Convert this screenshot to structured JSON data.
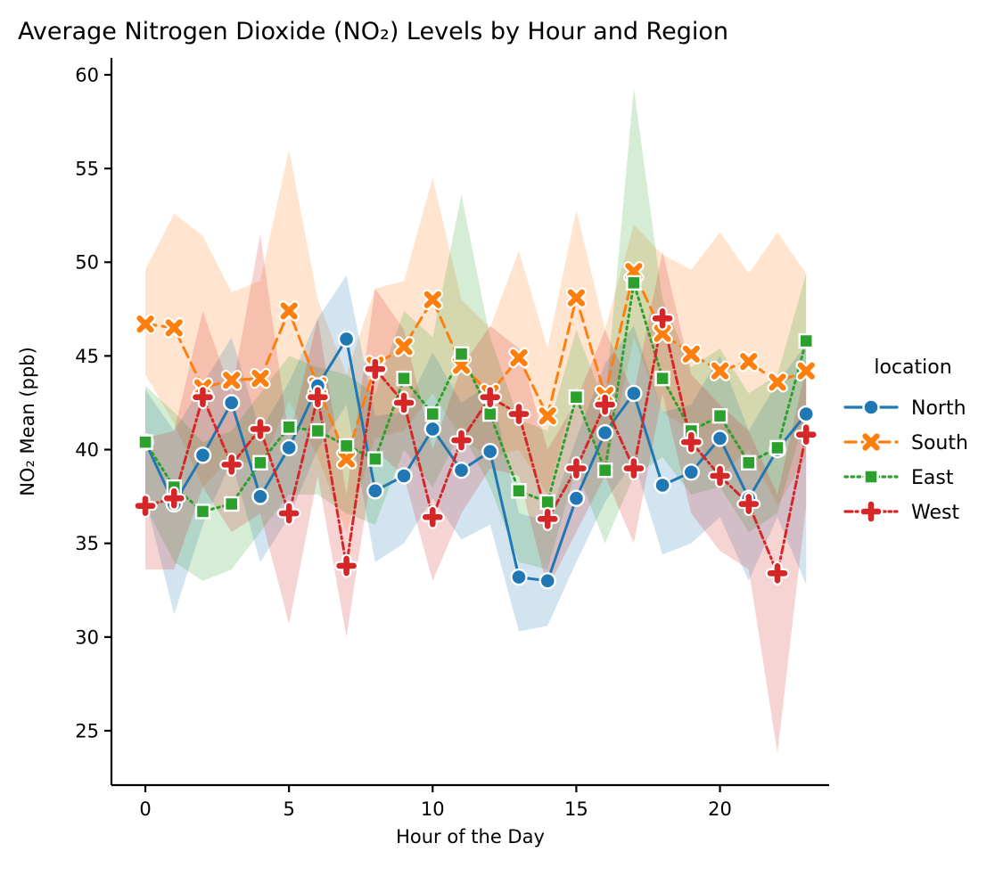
{
  "chart_data": {
    "type": "line",
    "title": "Average Nitrogen Dioxide (NO₂) Levels by Hour and Region",
    "xlabel": "Hour of the Day",
    "ylabel": "NO₂ Mean (ppb)",
    "legend_title": "location",
    "x": [
      0,
      1,
      2,
      3,
      4,
      5,
      6,
      7,
      8,
      9,
      10,
      11,
      12,
      13,
      14,
      15,
      16,
      17,
      18,
      19,
      20,
      21,
      22,
      23
    ],
    "x_ticks": [
      0,
      5,
      10,
      15,
      20
    ],
    "y_ticks": [
      25,
      30,
      35,
      40,
      45,
      50,
      55,
      60
    ],
    "xlim": [
      -1.18,
      23.8
    ],
    "ylim": [
      22.1,
      60.9
    ],
    "grid": false,
    "legend_position": "center right, outside plot",
    "band_note": "shaded areas are approximate confidence intervals read from the image",
    "series": [
      {
        "name": "South",
        "color": "#ff7f0e",
        "marker": "X",
        "dash": "12,7",
        "values": [
          46.7,
          46.5,
          43.3,
          43.7,
          43.8,
          47.4,
          43.4,
          39.5,
          44.5,
          45.5,
          48.0,
          44.5,
          43.0,
          44.9,
          41.8,
          48.1,
          42.9,
          49.5,
          46.2,
          45.1,
          44.2,
          44.7,
          43.6,
          44.2
        ],
        "band_upper": [
          49.6,
          52.6,
          51.4,
          48.4,
          49.0,
          56.0,
          48.0,
          44.0,
          48.6,
          49.0,
          54.5,
          48.0,
          46.5,
          50.6,
          45.4,
          52.8,
          46.4,
          52.0,
          50.4,
          49.6,
          51.6,
          49.4,
          51.6,
          49.4
        ],
        "band_lower": [
          44.0,
          41.4,
          38.0,
          39.6,
          39.0,
          42.6,
          39.6,
          35.6,
          40.6,
          41.0,
          43.0,
          40.6,
          39.6,
          40.0,
          37.6,
          43.4,
          38.6,
          46.0,
          42.0,
          41.0,
          38.6,
          40.0,
          37.0,
          39.6
        ]
      },
      {
        "name": "North",
        "color": "#1f77b4",
        "marker": "circle",
        "dash": "",
        "values": [
          40.4,
          37.1,
          39.7,
          42.5,
          37.5,
          40.1,
          43.4,
          45.9,
          37.8,
          38.6,
          41.1,
          38.9,
          39.9,
          33.2,
          33.0,
          37.4,
          40.9,
          43.0,
          38.1,
          38.8,
          40.6,
          37.4,
          40.0,
          41.9
        ],
        "band_upper": [
          43.2,
          41.0,
          43.5,
          46.0,
          41.0,
          43.6,
          47.0,
          49.3,
          41.8,
          42.0,
          45.2,
          42.5,
          43.5,
          36.6,
          36.2,
          40.6,
          44.6,
          46.6,
          42.0,
          42.4,
          45.0,
          41.0,
          43.6,
          45.6
        ],
        "band_lower": [
          37.4,
          31.2,
          36.0,
          39.4,
          34.0,
          36.4,
          40.0,
          42.4,
          34.0,
          35.0,
          37.4,
          35.2,
          36.0,
          30.3,
          30.6,
          34.0,
          37.2,
          39.4,
          34.4,
          35.0,
          36.4,
          33.0,
          36.4,
          32.8
        ]
      },
      {
        "name": "East",
        "color": "#2ca02c",
        "marker": "square",
        "dash": "2.5,4.5",
        "values": [
          40.4,
          38.0,
          36.7,
          37.1,
          39.3,
          41.2,
          41.0,
          40.2,
          39.5,
          43.8,
          41.9,
          45.1,
          41.9,
          37.8,
          37.2,
          42.8,
          38.9,
          48.9,
          43.8,
          41.0,
          41.8,
          39.3,
          40.1,
          45.8
        ],
        "band_upper": [
          43.4,
          42.0,
          40.4,
          41.0,
          43.0,
          45.0,
          44.4,
          44.0,
          43.0,
          47.4,
          46.0,
          53.6,
          46.0,
          41.6,
          41.0,
          46.4,
          42.4,
          59.3,
          48.0,
          44.4,
          45.4,
          43.0,
          44.0,
          49.4
        ],
        "band_lower": [
          37.0,
          34.0,
          33.0,
          33.6,
          35.6,
          37.6,
          37.6,
          36.6,
          36.0,
          40.0,
          38.0,
          41.0,
          38.0,
          34.0,
          33.6,
          39.0,
          35.0,
          38.6,
          39.6,
          37.6,
          38.0,
          35.6,
          36.6,
          42.0
        ]
      },
      {
        "name": "West",
        "color": "#d62728",
        "marker": "plus",
        "dash": "8,4,2.5,4",
        "values": [
          37.0,
          37.4,
          42.8,
          39.2,
          41.1,
          36.6,
          42.8,
          33.8,
          44.3,
          42.5,
          36.4,
          40.5,
          42.8,
          41.9,
          36.3,
          39.0,
          42.4,
          39.0,
          47.0,
          40.4,
          38.6,
          37.1,
          33.4,
          40.8
        ],
        "band_upper": [
          40.6,
          41.0,
          47.4,
          43.0,
          51.5,
          40.6,
          47.0,
          37.6,
          48.6,
          46.4,
          40.0,
          44.4,
          46.6,
          45.4,
          40.0,
          42.6,
          46.4,
          43.0,
          50.6,
          44.0,
          42.4,
          41.0,
          37.6,
          44.4
        ],
        "band_lower": [
          33.6,
          33.6,
          38.0,
          35.6,
          36.6,
          30.7,
          38.6,
          30.0,
          40.0,
          38.6,
          33.0,
          36.6,
          39.0,
          38.6,
          32.6,
          35.6,
          38.6,
          35.0,
          43.0,
          36.6,
          34.6,
          33.6,
          23.8,
          37.0
        ]
      }
    ],
    "legend_entries": [
      "North",
      "South",
      "East",
      "West"
    ]
  }
}
